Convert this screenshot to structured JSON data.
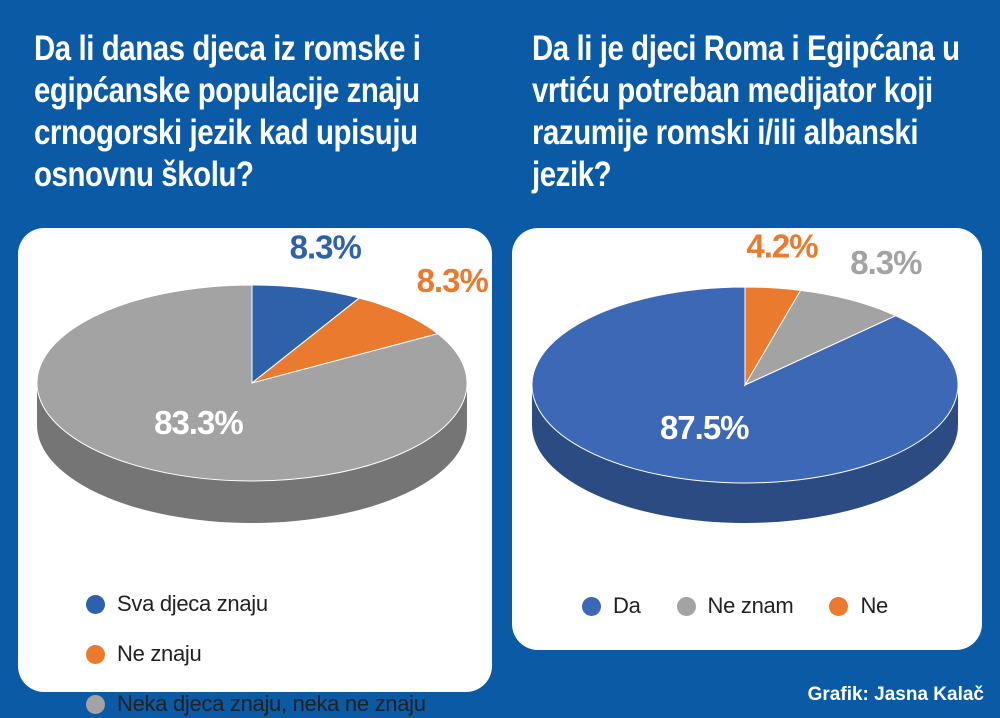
{
  "chart_data": [
    {
      "type": "pie",
      "title": "Da li danas djeca iz romske i egipćanske populacije znaju crnogorski jezik kad upisuju osnovnu školu?",
      "categories": [
        "Sva djeca znaju",
        "Ne znaju",
        "Neka djeca znaju, neka ne znaju"
      ],
      "values": [
        8.3,
        8.3,
        83.3
      ],
      "value_labels": [
        "8.3%",
        "8.3%",
        "83.3%"
      ],
      "colors": [
        "#2d62ab",
        "#ea7a2e",
        "#a3a3a3"
      ],
      "direction": "clockwise"
    },
    {
      "type": "pie",
      "title": "Da li je djeci Roma i Egipćana u vrtiću potreban medijator koji razumije romski i/ili albanski jezik?",
      "categories": [
        "Da",
        "Ne znam",
        "Ne"
      ],
      "values": [
        87.5,
        8.3,
        4.2
      ],
      "value_labels": [
        "87.5%",
        "8.3%",
        "4.2%"
      ],
      "colors": [
        "#3d68b5",
        "#a3a3a3",
        "#ea7a2e"
      ],
      "direction": "counterclockwise"
    }
  ],
  "credit": "Grafik: Jasna Kalač"
}
